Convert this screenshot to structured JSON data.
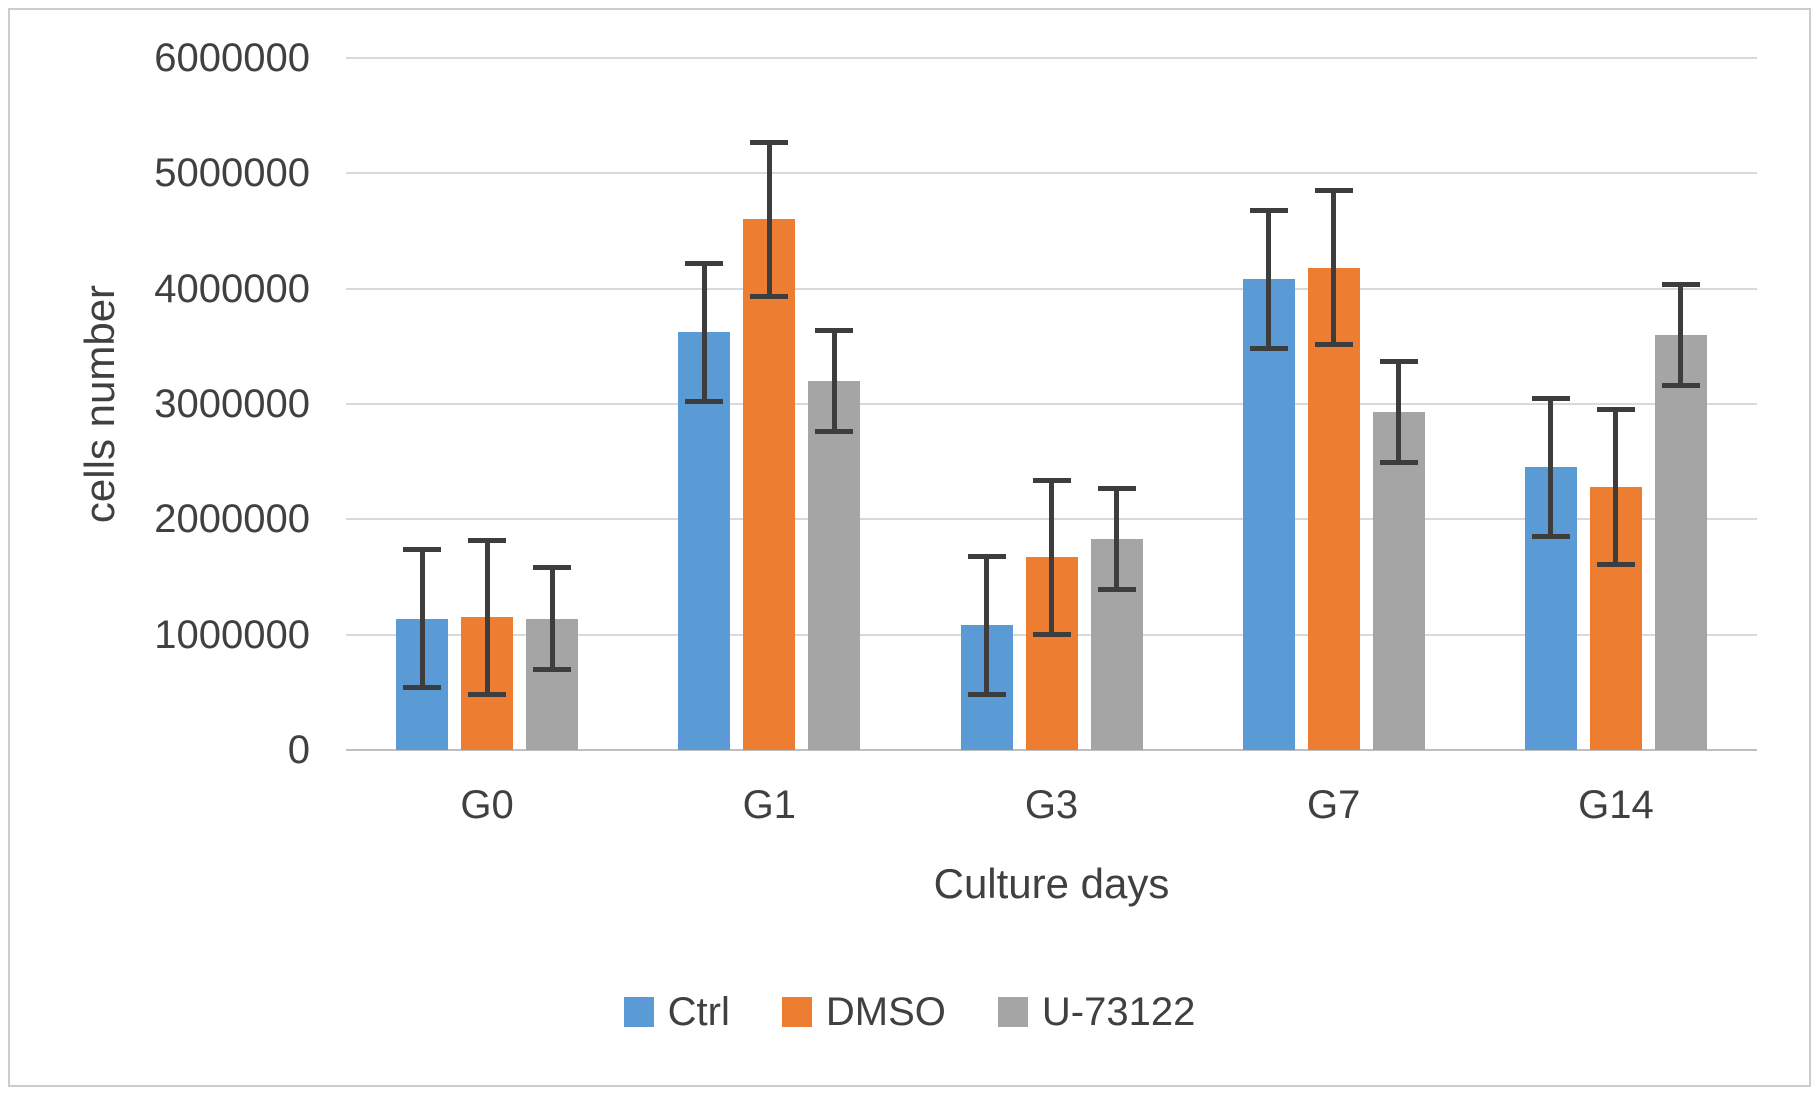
{
  "chart_data": {
    "type": "bar",
    "categories": [
      "G0",
      "G1",
      "G3",
      "G7",
      "G14"
    ],
    "series": [
      {
        "name": "Ctrl",
        "color": "#5B9BD5",
        "values": [
          1140000,
          3620000,
          1080000,
          4080000,
          2450000
        ],
        "error": 620000
      },
      {
        "name": "DMSO",
        "color": "#ED7D31",
        "values": [
          1150000,
          4600000,
          1670000,
          4180000,
          2280000
        ],
        "error": 690000
      },
      {
        "name": "U-73122",
        "color": "#A5A5A5",
        "values": [
          1140000,
          3200000,
          1830000,
          2930000,
          3600000
        ],
        "error": 460000
      }
    ],
    "xlabel": "Culture days",
    "ylabel": "cells number",
    "ylim": [
      0,
      6000000
    ],
    "ytick_step": 1000000,
    "ytick_labels": [
      "0",
      "1000000",
      "2000000",
      "3000000",
      "4000000",
      "5000000",
      "6000000"
    ],
    "grid": true,
    "legend_position": "bottom",
    "colors": {
      "error_bar": "#3d3d3d",
      "gridline": "#d9d9d9",
      "axis_line": "#bfbfbf",
      "text": "#404040",
      "frame_border": "#cccccc"
    }
  }
}
